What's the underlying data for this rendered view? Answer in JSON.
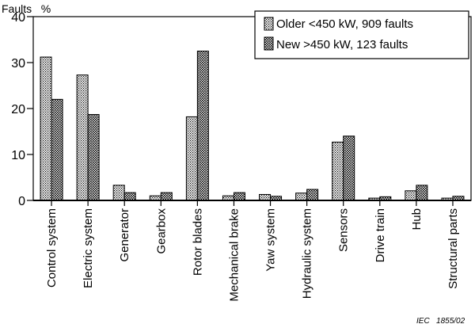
{
  "chart_data": {
    "type": "bar",
    "ylabel": "Faults   %",
    "ylim": [
      0,
      40
    ],
    "yticks": [
      0,
      10,
      20,
      30,
      40
    ],
    "grid": false,
    "legend_position": "top-right",
    "categories": [
      "Control system",
      "Electric system",
      "Generator",
      "Gearbox",
      "Rotor blades",
      "Mechanical brake",
      "Yaw system",
      "Hydraulic system",
      "Sensors",
      "Drive train",
      "Hub",
      "Structural parts"
    ],
    "series": [
      {
        "name": "Older <450 kW, 909 faults",
        "values": [
          31.2,
          27.3,
          3.3,
          1.0,
          18.2,
          1.0,
          1.3,
          1.6,
          12.7,
          0.5,
          2.1,
          0.5
        ]
      },
      {
        "name": "New >450 kW, 123 faults",
        "values": [
          22.0,
          18.7,
          1.7,
          1.7,
          32.5,
          1.7,
          0.9,
          2.4,
          14.0,
          0.8,
          3.3,
          0.9
        ]
      }
    ],
    "footnote": "IEC   1855/02"
  }
}
